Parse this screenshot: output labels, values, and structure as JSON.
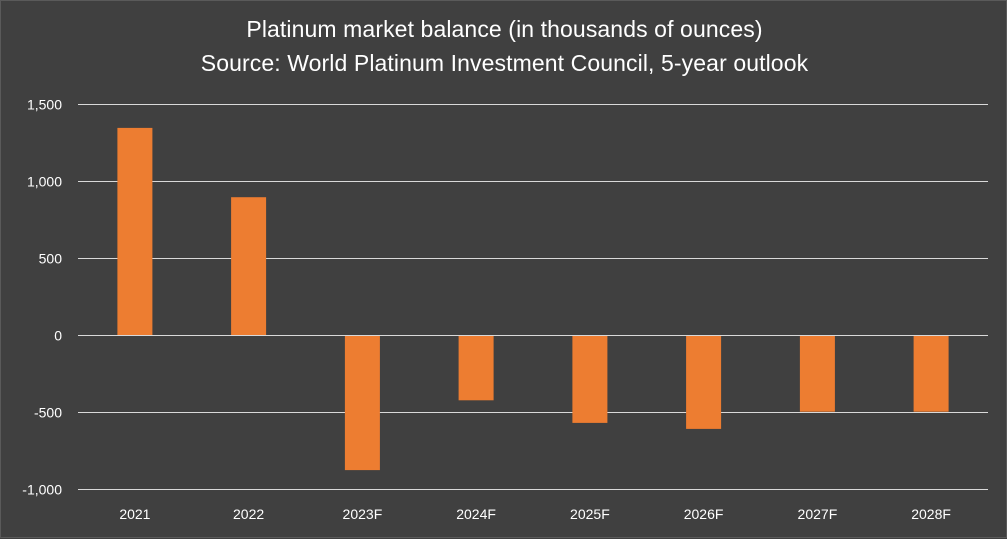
{
  "chart": {
    "title": "Platinum market balance (in thousands of ounces)",
    "subtitle": "Source: World Platinum Investment Council, 5-year outlook"
  },
  "colors": {
    "background": "#404040",
    "bar": "#ED7D31",
    "gridline": "#d9d9d9",
    "text": "#ffffff"
  },
  "chart_data": {
    "type": "bar",
    "title": "Platinum market balance (in thousands of ounces)",
    "subtitle": "Source: World Platinum Investment Council, 5-year outlook",
    "categories": [
      "2021",
      "2022",
      "2023F",
      "2024F",
      "2025F",
      "2026F",
      "2027F",
      "2028F"
    ],
    "values": [
      1345,
      895,
      -877,
      -424,
      -571,
      -610,
      -498,
      -498
    ],
    "ylim": [
      -1000,
      1500
    ],
    "yticks": [
      1500,
      1000,
      500,
      0,
      -500,
      -1000
    ],
    "ytick_labels": [
      "1,500",
      "1,000",
      "500",
      "0",
      "-500",
      "-1,000"
    ],
    "grid": true,
    "legend": "none"
  }
}
